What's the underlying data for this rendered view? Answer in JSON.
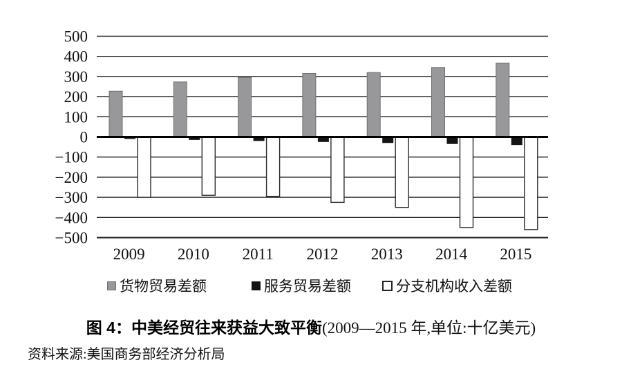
{
  "chart_data": {
    "type": "bar",
    "title": "中美经贸往来获益大致平衡",
    "subtitle": "(2009—2015 年,单位:十亿美元)",
    "categories": [
      "2009",
      "2010",
      "2011",
      "2012",
      "2013",
      "2014",
      "2015"
    ],
    "series": [
      {
        "name": "货物贸易差额",
        "color": "#98989a",
        "values": [
          227,
          273,
          295,
          315,
          320,
          345,
          367
        ]
      },
      {
        "name": "服务贸易差额",
        "color": "#141414",
        "values": [
          -10,
          -15,
          -20,
          -25,
          -30,
          -35,
          -40
        ]
      },
      {
        "name": "分支机构收入差额",
        "color": "#ffffff",
        "values": [
          -300,
          -290,
          -295,
          -325,
          -350,
          -450,
          -460
        ]
      }
    ],
    "ylim": [
      -500,
      500
    ],
    "ytick_step": 100,
    "grid": true,
    "legend_position": "bottom"
  },
  "caption": {
    "bold": "图 4：中美经贸往来获益大致平衡",
    "note": "(2009—2015 年,单位:十亿美元)"
  },
  "source": "资料来源:美国商务部经济分析局"
}
